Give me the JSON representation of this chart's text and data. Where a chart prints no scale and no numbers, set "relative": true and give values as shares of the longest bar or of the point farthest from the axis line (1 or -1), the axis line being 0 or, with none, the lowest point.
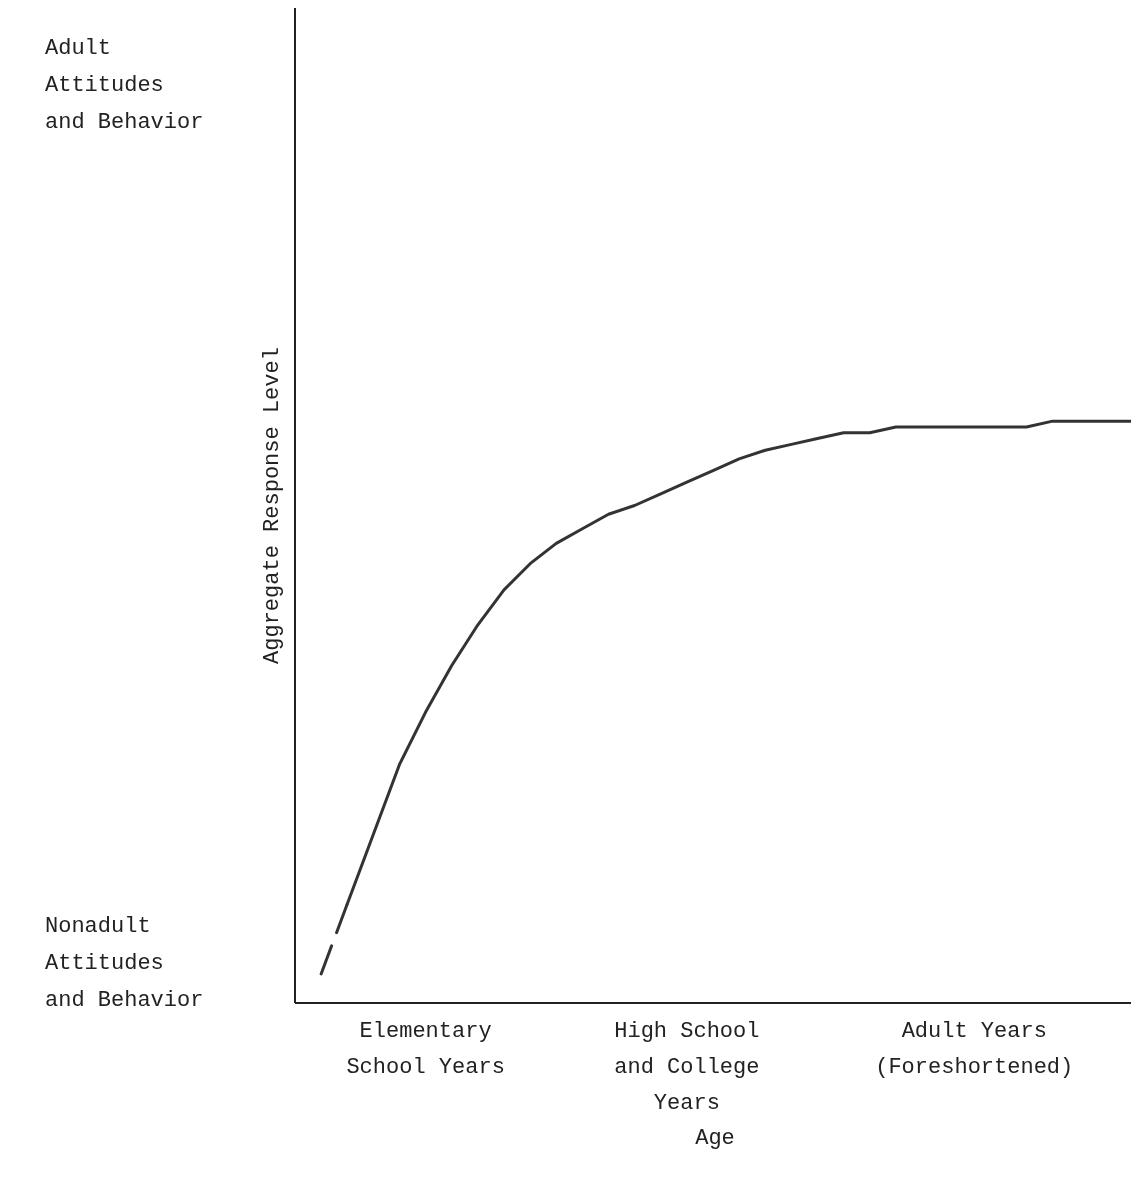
{
  "chart_data": {
    "type": "line",
    "relative": true,
    "xlabel": "Age",
    "ylabel": "Aggregate Response Level",
    "annotations": [
      "Adult Attitudes and Behavior",
      "Nonadult Attitudes and Behavior"
    ],
    "categories": [
      null,
      null,
      null,
      null,
      null,
      "Elementary School Years",
      null,
      null,
      null,
      null,
      null,
      null,
      null,
      null,
      null,
      "High School and College Years",
      null,
      null,
      null,
      null,
      null,
      null,
      null,
      null,
      null,
      null,
      "Adult Years (Foreshortened)",
      null,
      null,
      null,
      null,
      null,
      null
    ],
    "series": [
      {
        "color": "#333333",
        "line_style": "solid",
        "values": [
          null,
          null,
          0.17,
          0.29,
          0.41,
          0.5,
          0.58,
          0.65,
          0.71,
          0.755,
          0.79,
          0.815,
          0.84,
          0.855,
          0.875,
          0.895,
          0.915,
          0.935,
          0.95,
          0.96,
          0.97,
          0.98,
          0.98,
          0.99,
          0.99,
          0.99,
          0.99,
          0.99,
          0.99,
          1.0,
          1.0,
          1.0,
          1.0
        ]
      },
      {
        "color": "#333333",
        "line_style": "dashed",
        "values": [
          null,
          0.05,
          0.17,
          null,
          null,
          null,
          null,
          null,
          null,
          null,
          null,
          null,
          null,
          null,
          null,
          null,
          null,
          null,
          null,
          null,
          null,
          null,
          null,
          null,
          null,
          null,
          null,
          null,
          null,
          null,
          null,
          null,
          null
        ]
      }
    ],
    "grid": false
  }
}
